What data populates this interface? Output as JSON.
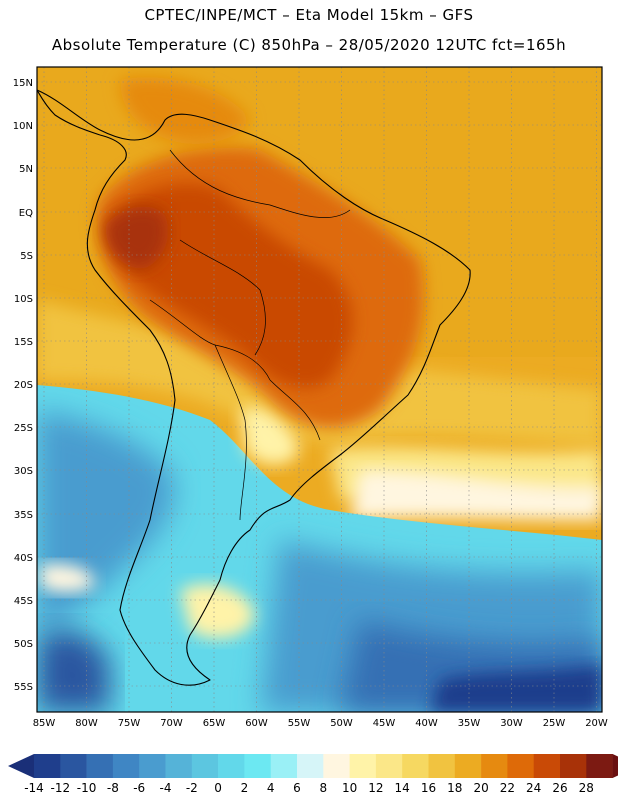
{
  "title": {
    "line1": "CPTEC/INPE/MCT –  Eta Model 15km – GFS",
    "line2": "Absolute Temperature (C) 850hPa – 28/05/2020 12UTC fct=165h"
  },
  "map": {
    "region": "South America",
    "lat_labels": [
      "15N",
      "10N",
      "5N",
      "EQ",
      "5S",
      "10S",
      "15S",
      "20S",
      "25S",
      "30S",
      "35S",
      "40S",
      "45S",
      "50S",
      "55S"
    ],
    "lon_labels": [
      "85W",
      "80W",
      "75W",
      "70W",
      "65W",
      "60W",
      "55W",
      "50W",
      "45W",
      "40W",
      "35W",
      "30W",
      "25W",
      "20W"
    ]
  },
  "colorbar": {
    "labels": [
      "-14",
      "-12",
      "-10",
      "-8",
      "-6",
      "-4",
      "-2",
      "0",
      "2",
      "4",
      "6",
      "8",
      "10",
      "12",
      "14",
      "16",
      "18",
      "20",
      "22",
      "24",
      "26",
      "28"
    ],
    "colors": [
      "#1f3e8c",
      "#2a56a0",
      "#3570b4",
      "#3f86c4",
      "#4a9ccf",
      "#55b3d8",
      "#5cc6e0",
      "#62d8ea",
      "#6ce8f2",
      "#9af0f6",
      "#d6f5f8",
      "#fff6e0",
      "#fff3a8",
      "#fbe788",
      "#f6d861",
      "#f1c340",
      "#ecab22",
      "#e68a10",
      "#de6a08",
      "#c94a06",
      "#a83208",
      "#7c1a12"
    ],
    "extend_low_color": "#1a2f78",
    "extend_high_color": "#6a1010"
  }
}
